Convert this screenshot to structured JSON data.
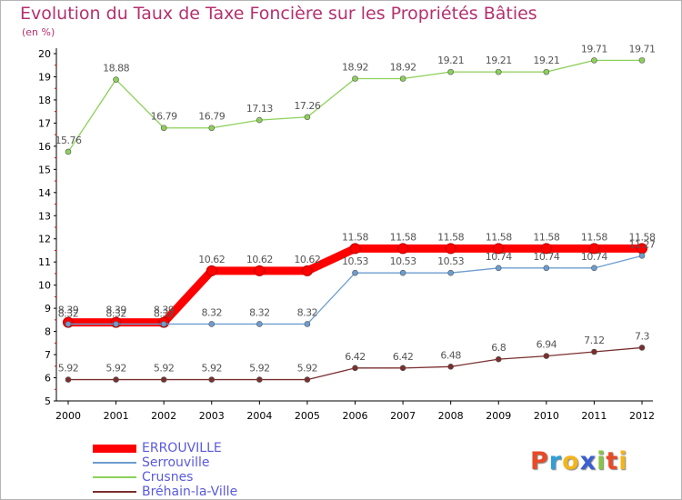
{
  "chart_data": {
    "type": "line",
    "title": "Evolution du Taux de Taxe Foncière sur les Propriétés Bâties",
    "subtitle": "(en %)",
    "x": [
      "2000",
      "2001",
      "2002",
      "2003",
      "2004",
      "2005",
      "2006",
      "2007",
      "2008",
      "2009",
      "2010",
      "2011",
      "2012"
    ],
    "ylim": [
      5,
      20
    ],
    "yticks": [
      "5",
      "6",
      "7",
      "8",
      "9",
      "10",
      "11",
      "12",
      "13",
      "14",
      "15",
      "16",
      "17",
      "18",
      "19",
      "20"
    ],
    "grid": false,
    "legend_position": "bottom-left",
    "series": [
      {
        "name": "ERROUVILLE",
        "color": "#ff0000",
        "values": [
          8.39,
          8.39,
          8.39,
          10.62,
          10.62,
          10.62,
          11.58,
          11.58,
          11.58,
          11.58,
          11.58,
          11.58,
          11.58
        ],
        "labels": [
          "8.39",
          "8.39",
          "8.39",
          "10.62",
          "10.62",
          "10.62",
          "11.58",
          "11.58",
          "11.58",
          "11.58",
          "11.58",
          "11.58",
          "11.58"
        ]
      },
      {
        "name": "Serrouville",
        "color": "#6c9dcf",
        "values": [
          8.32,
          8.32,
          8.32,
          8.32,
          8.32,
          8.32,
          10.53,
          10.53,
          10.53,
          10.74,
          10.74,
          10.74,
          11.27
        ],
        "labels": [
          "8.32",
          "8.32",
          "8.32",
          "8.32",
          "8.32",
          "8.32",
          "10.53",
          "10.53",
          "10.53",
          "10.74",
          "10.74",
          "10.74",
          "11.27"
        ]
      },
      {
        "name": "Crusnes",
        "color": "#8dd05a",
        "values": [
          15.76,
          18.88,
          16.79,
          16.79,
          17.13,
          17.26,
          18.92,
          18.92,
          19.21,
          19.21,
          19.21,
          19.71,
          19.71
        ],
        "labels": [
          "15.76",
          "18.88",
          "16.79",
          "16.79",
          "17.13",
          "17.26",
          "18.92",
          "18.92",
          "19.21",
          "19.21",
          "19.21",
          "19.71",
          "19.71"
        ]
      },
      {
        "name": "Bréhain-la-Ville",
        "color": "#7a2e2e",
        "values": [
          5.92,
          5.92,
          5.92,
          5.92,
          5.92,
          5.92,
          6.42,
          6.42,
          6.48,
          6.8,
          6.94,
          7.12,
          7.3
        ],
        "labels": [
          "5.92",
          "5.92",
          "5.92",
          "5.92",
          "5.92",
          "5.92",
          "6.42",
          "6.42",
          "6.48",
          "6.8",
          "6.94",
          "7.12",
          "7.3"
        ]
      }
    ]
  },
  "logo": {
    "letters": [
      "P",
      "r",
      "o",
      "x",
      "i",
      "t",
      "i"
    ],
    "colors": [
      "#e84a27",
      "#2e9fd8",
      "#f3b51b",
      "#3a5fd0",
      "#88c43f",
      "#e84a27",
      "#f3b51b"
    ]
  }
}
